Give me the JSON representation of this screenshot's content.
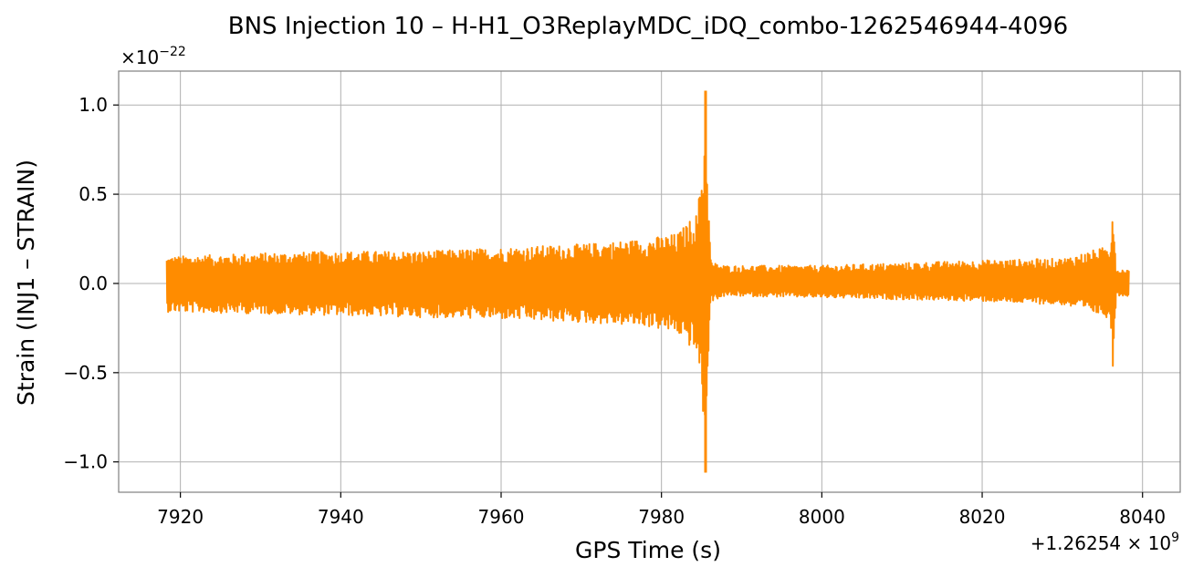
{
  "chart_data": {
    "type": "line",
    "title": "BNS Injection 10 – H-H1_O3ReplayMDC_iDQ_combo-1262546944-4096",
    "xlabel": "GPS Time (s)",
    "ylabel": "Strain (INJ1 – STRAIN)",
    "x_offset_text": "+1.26254 × 10",
    "x_offset_exponent": "9",
    "y_scale_text": "×10",
    "y_scale_exponent": "−22",
    "xlim": [
      7912.3,
      8044.7
    ],
    "ylim": [
      -1.17,
      1.19
    ],
    "x_ticks": [
      {
        "value": 7920,
        "label": "7920"
      },
      {
        "value": 7940,
        "label": "7940"
      },
      {
        "value": 7960,
        "label": "7960"
      },
      {
        "value": 7980,
        "label": "7980"
      },
      {
        "value": 8000,
        "label": "8000"
      },
      {
        "value": 8020,
        "label": "8020"
      },
      {
        "value": 8040,
        "label": "8040"
      }
    ],
    "y_ticks": [
      {
        "value": 1.0,
        "label": "1.0"
      },
      {
        "value": 0.5,
        "label": "0.5"
      },
      {
        "value": 0.0,
        "label": "0.0"
      },
      {
        "value": -0.5,
        "label": "−0.5"
      },
      {
        "value": -1.0,
        "label": "−1.0"
      }
    ],
    "grid": true,
    "series": [
      {
        "color": "#ff8c00",
        "x_start": 7918.3,
        "x_end": 8038.3,
        "envelope_x": [
          7918.3,
          7930,
          7940,
          7950,
          7960,
          7970,
          7978,
          7982,
          7984.5,
          7985.2,
          7985.5,
          7985.8,
          7986.2,
          7988,
          8000,
          8020,
          8030,
          8035,
          8036,
          8036.3,
          8036.7,
          8038.3
        ],
        "envelope_hi": [
          0.15,
          0.17,
          0.18,
          0.18,
          0.2,
          0.22,
          0.25,
          0.28,
          0.4,
          0.75,
          1.08,
          0.5,
          0.12,
          0.1,
          0.1,
          0.13,
          0.14,
          0.2,
          0.22,
          0.54,
          0.08,
          0.08
        ],
        "envelope_lo": [
          -0.16,
          -0.17,
          -0.18,
          -0.19,
          -0.2,
          -0.22,
          -0.24,
          -0.28,
          -0.4,
          -0.75,
          -1.06,
          -0.45,
          -0.1,
          -0.07,
          -0.08,
          -0.1,
          -0.12,
          -0.18,
          -0.2,
          -0.52,
          -0.07,
          -0.07
        ]
      }
    ]
  }
}
